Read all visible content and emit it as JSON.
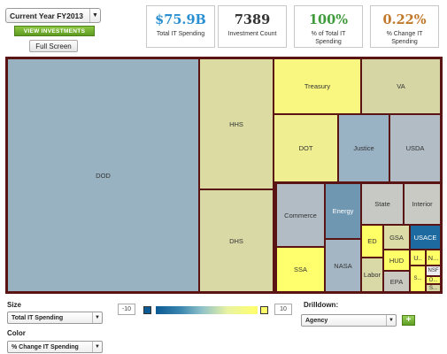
{
  "year_select": {
    "label": "Current Year FY2013"
  },
  "view_investments_label": "VIEW INVESTMENTS",
  "full_screen_label": "Full Screen",
  "stats": [
    {
      "value": "$75.9B",
      "label": "Total IT Spending",
      "color": "#2a8fd1"
    },
    {
      "value": "7389",
      "label": "Investment Count",
      "color": "#333333"
    },
    {
      "value": "100%",
      "label": "% of Total IT Spending",
      "color": "#3e9a3a"
    },
    {
      "value": "0.22%",
      "label": "% Change IT Spending",
      "color": "#c0792a"
    }
  ],
  "treemap": {
    "tiles": [
      {
        "name": "DOD",
        "color": "#98b2c2"
      },
      {
        "name": "HHS",
        "color": "#dcdca2"
      },
      {
        "name": "DHS",
        "color": "#d9d9a6"
      },
      {
        "name": "Treasury",
        "color": "#f9f780"
      },
      {
        "name": "VA",
        "color": "#d6d6a4"
      },
      {
        "name": "DOT",
        "color": "#efee90"
      },
      {
        "name": "Justice",
        "color": "#9ab3c4"
      },
      {
        "name": "USDA",
        "color": "#b1bcc5"
      },
      {
        "name": "Commerce",
        "color": "#b1bcc5"
      },
      {
        "name": "Energy",
        "color": "#6f97b1"
      },
      {
        "name": "State",
        "color": "#c7c9c4"
      },
      {
        "name": "Interior",
        "color": "#c8cac3"
      },
      {
        "name": "SSA",
        "color": "#ffff6d"
      },
      {
        "name": "NASA",
        "color": "#a4b6c3"
      },
      {
        "name": "ED",
        "color": "#ffff66"
      },
      {
        "name": "GSA",
        "color": "#dcdca6"
      },
      {
        "name": "USACE",
        "color": "#1d6aa0"
      },
      {
        "name": "Labor",
        "color": "#d9d9a8"
      },
      {
        "name": "HUD",
        "color": "#ffff68"
      },
      {
        "name": "EPA",
        "color": "#c9c9c1"
      },
      {
        "name": "U..",
        "color": "#ffff6a"
      },
      {
        "name": "N...",
        "color": "#ffff66"
      },
      {
        "name": "NSF",
        "color": "#eeeef2"
      },
      {
        "name": "O...",
        "color": "#ffff72"
      },
      {
        "name": "S...",
        "color": "#ffff69"
      },
      {
        "name": "S...",
        "color": "#d7d7a4"
      }
    ]
  },
  "size": {
    "label": "Size",
    "value": "Total IT Spending"
  },
  "color": {
    "label": "Color",
    "value": "% Change IT Spending"
  },
  "legend": {
    "min": "-10",
    "max": "10",
    "min_color": "#0b5a94",
    "max_color": "#ffff6a"
  },
  "drilldown": {
    "label": "Drilldown:",
    "value": "Agency"
  }
}
